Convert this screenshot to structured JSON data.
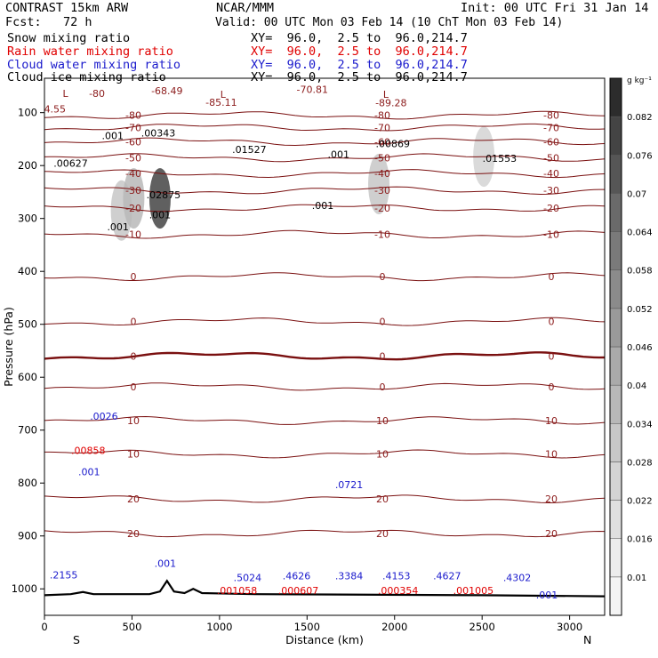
{
  "header": {
    "left": [
      "CONTRAST 15km ARW",
      "Fcst:   72 h"
    ],
    "center": "NCAR/MMM",
    "init": "Init: 00 UTC Fri 31 Jan 14",
    "valid": "Valid: 00 UTC Mon 03 Feb 14 (10 ChT Mon 03 Feb 14)",
    "fields": [
      {
        "name": "Snow mixing ratio",
        "xy": "XY=  96.0,  2.5 to  96.0,214.7",
        "color": "#000000"
      },
      {
        "name": "Rain water mixing ratio",
        "xy": "XY=  96.0,  2.5 to  96.0,214.7",
        "color": "#e00000"
      },
      {
        "name": "Cloud water mixing ratio",
        "xy": "XY=  96.0,  2.5 to  96.0,214.7",
        "color": "#1a1acc"
      },
      {
        "name": "Cloud ice mixing ratio",
        "xy": "XY=  96.0,  2.5 to  96.0,214.7",
        "color": "#000000"
      }
    ]
  },
  "chart_data": {
    "type": "heatmap",
    "xlabel": "Distance (km)",
    "ylabel": "Pressure (hPa)",
    "xlim": [
      0,
      3200
    ],
    "ylim": [
      1050,
      35
    ],
    "x_ticks": [
      0,
      500,
      1000,
      1500,
      2000,
      2500,
      3000
    ],
    "y_ticks": [
      100,
      200,
      300,
      400,
      500,
      600,
      700,
      800,
      900,
      1000
    ],
    "end_labels": {
      "left": "S",
      "right": "N"
    },
    "colorbar": {
      "unit": "g kg⁻¹",
      "levels": [
        0.01,
        0.016,
        0.022,
        0.028,
        0.034,
        0.04,
        0.046,
        0.052,
        0.058,
        0.064,
        0.07,
        0.076,
        0.082
      ],
      "colors": [
        "#f4f4f4",
        "#ececec",
        "#e0e0e0",
        "#d4d4d4",
        "#c7c7c7",
        "#b8b8b8",
        "#aaaaaa",
        "#9a9a9a",
        "#8b8b8b",
        "#7a7a7a",
        "#6a6a6a",
        "#565656",
        "#444444",
        "#2c2c2c"
      ]
    },
    "temperature_contours": [
      {
        "label": "-80",
        "p": 105
      },
      {
        "label": "-70",
        "p": 128
      },
      {
        "label": "-60",
        "p": 155
      },
      {
        "label": "-50",
        "p": 185
      },
      {
        "label": "-40",
        "p": 215
      },
      {
        "label": "-30",
        "p": 247
      },
      {
        "label": "-20",
        "p": 280
      },
      {
        "label": "-10",
        "p": 330
      },
      {
        "label": "0",
        "p": 410
      },
      {
        "label": "0",
        "p": 495
      },
      {
        "label": "0",
        "p": 560
      },
      {
        "label": "0",
        "p": 618
      },
      {
        "label": "10",
        "p": 682
      },
      {
        "label": "10",
        "p": 745
      },
      {
        "label": "20",
        "p": 830
      },
      {
        "label": "20",
        "p": 895
      }
    ],
    "snow_shading": [
      {
        "x": 440,
        "p": 285,
        "v": 0.03
      },
      {
        "x": 510,
        "p": 262,
        "v": 0.04
      },
      {
        "x": 660,
        "p": 262,
        "v": 0.082
      },
      {
        "x": 1910,
        "p": 235,
        "v": 0.03
      },
      {
        "x": 2510,
        "p": 183,
        "v": 0.028
      }
    ],
    "annotations": [
      {
        "text": "-68.49",
        "x": 700,
        "p": 65,
        "color": "#8b1a1a"
      },
      {
        "text": "-70.81",
        "x": 1530,
        "p": 63,
        "color": "#8b1a1a"
      },
      {
        "text": "-85.11",
        "x": 1010,
        "p": 87,
        "color": "#8b1a1a"
      },
      {
        "text": "-89.28",
        "x": 1980,
        "p": 88,
        "color": "#8b1a1a"
      },
      {
        "text": "-80",
        "x": 300,
        "p": 70,
        "color": "#8b1a1a"
      },
      {
        "text": "L",
        "x": 120,
        "p": 70,
        "color": "#8b1a1a"
      },
      {
        "text": "L",
        "x": 1020,
        "p": 72,
        "color": "#8b1a1a"
      },
      {
        "text": "L",
        "x": 1950,
        "p": 72,
        "color": "#8b1a1a"
      },
      {
        "text": "4.55",
        "x": 60,
        "p": 100,
        "color": "#8b1a1a"
      },
      {
        "text": ".001",
        "x": 390,
        "p": 150,
        "color": "#000000"
      },
      {
        "text": ".00343",
        "x": 650,
        "p": 145,
        "color": "#000000"
      },
      {
        "text": ".01527",
        "x": 1170,
        "p": 176,
        "color": "#000000"
      },
      {
        "text": ".00869",
        "x": 1990,
        "p": 165,
        "color": "#000000"
      },
      {
        "text": ".01553",
        "x": 2600,
        "p": 193,
        "color": "#000000"
      },
      {
        "text": ".00627",
        "x": 150,
        "p": 202,
        "color": "#000000"
      },
      {
        "text": ".001",
        "x": 1680,
        "p": 185,
        "color": "#000000"
      },
      {
        "text": ".02875",
        "x": 680,
        "p": 262,
        "color": "#000000"
      },
      {
        "text": ".001",
        "x": 660,
        "p": 300,
        "color": "#000000"
      },
      {
        "text": ".001",
        "x": 420,
        "p": 322,
        "color": "#000000"
      },
      {
        "text": ".001",
        "x": 1590,
        "p": 282,
        "color": "#000000"
      },
      {
        "text": ".0026",
        "x": 340,
        "p": 680,
        "color": "#1a1acc"
      },
      {
        "text": ".00858",
        "x": 250,
        "p": 745,
        "color": "#e00000"
      },
      {
        "text": ".001",
        "x": 255,
        "p": 785,
        "color": "#1a1acc"
      },
      {
        "text": ".0721",
        "x": 1740,
        "p": 810,
        "color": "#1a1acc"
      },
      {
        "text": ".2155",
        "x": 110,
        "p": 980,
        "color": "#1a1acc"
      },
      {
        "text": ".001",
        "x": 690,
        "p": 958,
        "color": "#1a1acc"
      },
      {
        "text": ".5024",
        "x": 1160,
        "p": 985,
        "color": "#1a1acc"
      },
      {
        "text": ".4626",
        "x": 1440,
        "p": 982,
        "color": "#1a1acc"
      },
      {
        "text": ".3384",
        "x": 1740,
        "p": 982,
        "color": "#1a1acc"
      },
      {
        "text": ".4153",
        "x": 2010,
        "p": 982,
        "color": "#1a1acc"
      },
      {
        "text": ".4627",
        "x": 2300,
        "p": 982,
        "color": "#1a1acc"
      },
      {
        "text": ".4302",
        "x": 2700,
        "p": 985,
        "color": "#1a1acc"
      },
      {
        "text": ".001",
        "x": 2870,
        "p": 1018,
        "color": "#1a1acc"
      },
      {
        "text": ".001058",
        "x": 1100,
        "p": 1010,
        "color": "#e00000"
      },
      {
        "text": ".000607",
        "x": 1450,
        "p": 1010,
        "color": "#e00000"
      },
      {
        "text": ".000354",
        "x": 2020,
        "p": 1010,
        "color": "#e00000"
      },
      {
        "text": ".001005",
        "x": 2450,
        "p": 1010,
        "color": "#e00000"
      }
    ],
    "terrain": [
      [
        0,
        1012
      ],
      [
        150,
        1010
      ],
      [
        220,
        1006
      ],
      [
        280,
        1010
      ],
      [
        600,
        1010
      ],
      [
        660,
        1005
      ],
      [
        700,
        985
      ],
      [
        740,
        1005
      ],
      [
        800,
        1008
      ],
      [
        850,
        1000
      ],
      [
        900,
        1008
      ],
      [
        1200,
        1010
      ],
      [
        2500,
        1012
      ],
      [
        3200,
        1014
      ]
    ]
  }
}
